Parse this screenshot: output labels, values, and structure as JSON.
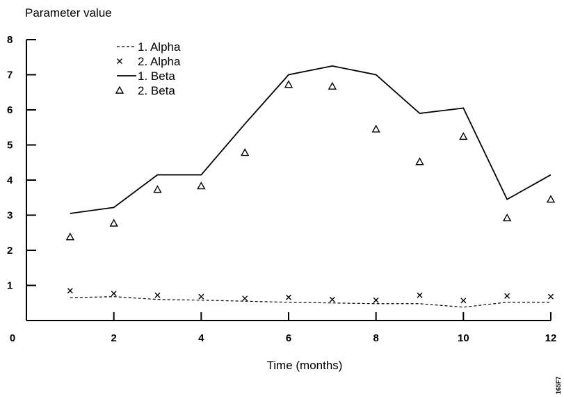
{
  "chart_data": {
    "type": "line",
    "title": "",
    "ylabel": "Parameter value",
    "xlabel": "Time (months)",
    "xlim": [
      0,
      12
    ],
    "ylim": [
      0,
      8
    ],
    "xticks": [
      0,
      2,
      4,
      6,
      8,
      10,
      12
    ],
    "yticks": [
      1,
      2,
      3,
      4,
      5,
      6,
      7,
      8
    ],
    "grid": false,
    "legend_position": "top-left",
    "x": [
      1,
      2,
      3,
      4,
      5,
      6,
      7,
      8,
      9,
      10,
      11,
      12
    ],
    "series": [
      {
        "name": "1. Alpha",
        "style": "dashed-line",
        "values": [
          0.65,
          0.68,
          0.6,
          0.58,
          0.55,
          0.52,
          0.5,
          0.48,
          0.48,
          0.38,
          0.52,
          0.52
        ]
      },
      {
        "name": "2. Alpha",
        "style": "x-marker",
        "values": [
          0.85,
          0.77,
          0.72,
          0.68,
          0.63,
          0.66,
          0.6,
          0.58,
          0.72,
          0.57,
          0.7,
          0.68
        ]
      },
      {
        "name": "1. Beta",
        "style": "solid-line",
        "values": [
          3.05,
          3.22,
          4.15,
          4.15,
          5.6,
          7.0,
          7.25,
          7.0,
          5.9,
          6.05,
          3.45,
          4.15
        ]
      },
      {
        "name": "2. Beta",
        "style": "triangle-marker",
        "values": [
          2.38,
          2.77,
          3.73,
          3.83,
          4.78,
          6.72,
          6.67,
          5.45,
          4.52,
          5.24,
          2.92,
          3.45
        ]
      }
    ]
  },
  "figure_id": "165F7"
}
